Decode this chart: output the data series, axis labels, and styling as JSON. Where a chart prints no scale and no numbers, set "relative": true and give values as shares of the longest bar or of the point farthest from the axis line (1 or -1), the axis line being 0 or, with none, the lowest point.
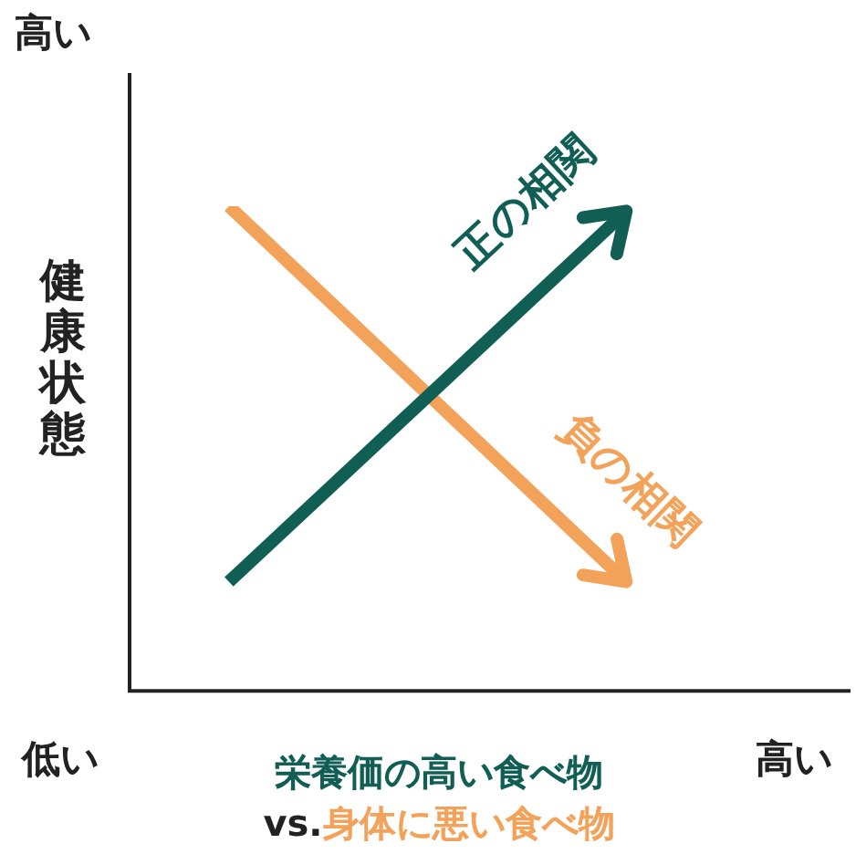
{
  "chart_data": {
    "type": "line",
    "relative": true,
    "categories": [
      null,
      null,
      null,
      null,
      null,
      null,
      null,
      null
    ],
    "series": [
      {
        "name": "正の相関",
        "color": "#115e55",
        "values": [
          null,
          0.225,
          null,
          null,
          null,
          0.99,
          null,
          null
        ]
      },
      {
        "name": "負の相関",
        "color": "#f3a25a",
        "values": [
          null,
          1,
          null,
          null,
          null,
          0.225,
          null,
          null
        ]
      }
    ],
    "xlabel": "栄養価の高い食べ物",
    "ylabel": "健康状態",
    "annotations": [
      "高い",
      "低い",
      "高い",
      "vs.",
      "身体に悪い食べ物"
    ],
    "grid": false,
    "legend": false,
    "marker": "none",
    "line_style": "solid"
  }
}
